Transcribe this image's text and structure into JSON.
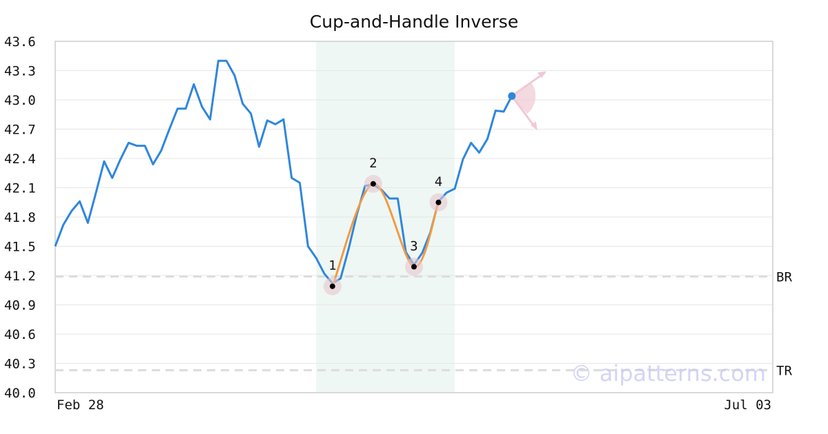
{
  "chart_data": {
    "type": "line",
    "title": "Cup-and-Handle Inverse",
    "categories": [
      "Feb 28",
      null,
      null,
      null,
      null,
      null,
      null,
      null,
      null,
      null,
      null,
      null,
      null,
      null,
      null,
      null,
      null,
      null,
      null,
      null,
      null,
      null,
      null,
      null,
      null,
      null,
      null,
      null,
      null,
      null,
      null,
      null,
      null,
      null,
      null,
      null,
      null,
      null,
      null,
      null,
      null,
      null,
      null,
      null,
      null,
      null,
      null,
      null,
      null,
      null,
      null,
      null,
      null,
      null,
      null,
      null,
      null,
      null,
      null,
      null,
      null,
      null,
      null,
      null,
      null,
      null,
      null,
      null,
      null,
      null,
      null,
      null,
      null,
      null,
      null,
      null,
      null,
      null,
      null,
      null,
      null,
      null,
      null,
      null,
      null,
      null,
      null,
      null,
      "Jul 03"
    ],
    "series": [
      {
        "color": "#2f86dd",
        "values": [
          41.5,
          41.72,
          41.86,
          41.96,
          41.74,
          42.05,
          42.37,
          42.2,
          42.39,
          42.56,
          42.53,
          42.53,
          42.34,
          42.48,
          42.7,
          42.91,
          42.91,
          43.16,
          42.93,
          42.8,
          43.4,
          43.4,
          43.25,
          42.96,
          42.86,
          42.52,
          42.79,
          42.75,
          42.8,
          42.2,
          42.15,
          41.5,
          41.38,
          41.22,
          41.12,
          41.17,
          41.48,
          41.83,
          42.12,
          42.13,
          42.08,
          41.99,
          41.99,
          41.44,
          41.31,
          41.43,
          41.64,
          41.96,
          42.05,
          42.09,
          42.39,
          42.56,
          42.46,
          42.6,
          42.89,
          42.88,
          43.04,
          null,
          null,
          null,
          null,
          null,
          null,
          null,
          null,
          null,
          null,
          null,
          null,
          null,
          null,
          null,
          null,
          null,
          null,
          null,
          null,
          null,
          null,
          null,
          null,
          null,
          null,
          null,
          null,
          null,
          null,
          null,
          null
        ]
      }
    ],
    "pattern": {
      "color": "#f39a45",
      "highlight": [
        32,
        49
      ],
      "points": [
        {
          "label": "1",
          "index": 34,
          "value": 41.09
        },
        {
          "label": "2",
          "index": 39,
          "value": 42.14
        },
        {
          "label": "3",
          "index": 44,
          "value": 41.29
        },
        {
          "label": "4",
          "index": 47,
          "value": 41.95
        }
      ]
    },
    "reference_lines": [
      {
        "label": "BR",
        "value": 41.19
      },
      {
        "label": "TR",
        "value": 40.23
      }
    ],
    "ylim": [
      40,
      43.6
    ],
    "yticks": [
      {
        "value": 40,
        "label": "40.0"
      },
      40.3,
      40.6,
      40.9,
      41.2,
      41.5,
      41.8,
      42.1,
      42.4,
      42.7,
      {
        "value": 43,
        "label": "43.0"
      },
      43.3,
      43.6
    ],
    "grid": true,
    "watermark": "© aipatterns.com"
  }
}
